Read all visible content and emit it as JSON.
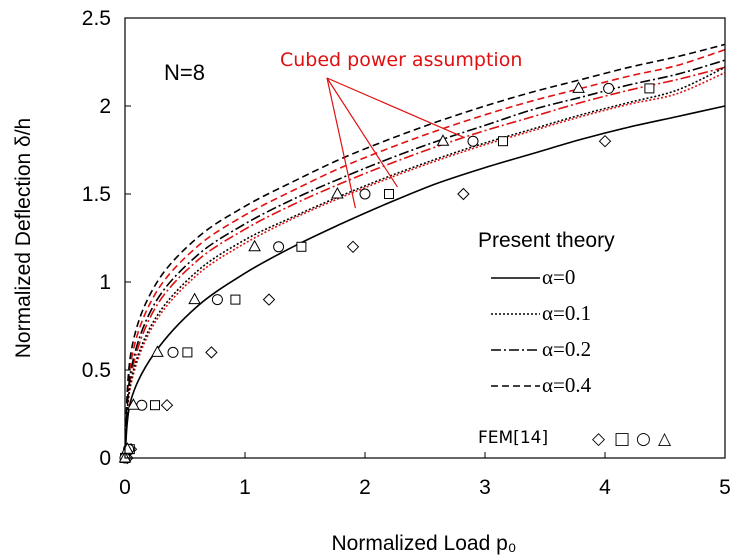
{
  "chart_data": {
    "type": "line",
    "title": "",
    "panel_label": "N=8",
    "xlabel": "Normalized Load p₀",
    "ylabel": "Normalized Deflection δ/h",
    "xlim": [
      0,
      5
    ],
    "ylim": [
      0,
      2.5
    ],
    "xticks": [
      "0",
      "1",
      "2",
      "3",
      "4",
      "5"
    ],
    "yticks": [
      "0",
      "0.5",
      "1",
      "1.5",
      "2",
      "2.5"
    ],
    "legend_title": "Present theory",
    "legend_position": "right-center",
    "annotation": "Cubed power assumption",
    "fem_label": "FEM[14]",
    "fem_symbols": [
      "◇",
      "□",
      "○",
      "△"
    ],
    "colors": {
      "present": "#000000",
      "cubed": "#e01010"
    },
    "series": [
      {
        "name": "α=0",
        "style": "solid",
        "y": [
          0,
          0.33,
          0.6,
          0.86,
          1.05,
          1.2,
          1.33,
          1.45,
          1.56,
          1.65,
          1.73,
          1.81,
          1.88,
          1.94,
          2.0
        ]
      },
      {
        "name": "α=0.1",
        "style": "dotted",
        "y": [
          0,
          0.44,
          0.79,
          1.06,
          1.24,
          1.37,
          1.49,
          1.6,
          1.7,
          1.79,
          1.87,
          1.95,
          2.02,
          2.09,
          2.22
        ]
      },
      {
        "name": "α=0.2",
        "style": "dashdot",
        "y": [
          0,
          0.5,
          0.88,
          1.15,
          1.33,
          1.47,
          1.59,
          1.7,
          1.8,
          1.89,
          1.98,
          2.05,
          2.12,
          2.18,
          2.26
        ]
      },
      {
        "name": "α=0.4",
        "style": "dashed",
        "y": [
          0,
          0.6,
          0.98,
          1.25,
          1.43,
          1.57,
          1.7,
          1.81,
          1.91,
          2.0,
          2.08,
          2.15,
          2.22,
          2.28,
          2.35
        ]
      }
    ],
    "x": [
      0,
      0.05,
      0.25,
      0.6,
      1.0,
      1.4,
      1.8,
      2.2,
      2.6,
      3.0,
      3.4,
      3.8,
      4.2,
      4.6,
      5.0
    ],
    "cubed_series": [
      {
        "style": "dotted",
        "y": [
          0,
          0.42,
          0.77,
          1.04,
          1.22,
          1.36,
          1.48,
          1.59,
          1.69,
          1.78,
          1.86,
          1.94,
          2.01,
          2.07,
          2.19
        ]
      },
      {
        "style": "dashdot",
        "y": [
          0,
          0.47,
          0.85,
          1.12,
          1.3,
          1.44,
          1.56,
          1.67,
          1.77,
          1.86,
          1.94,
          2.02,
          2.09,
          2.15,
          2.22
        ]
      },
      {
        "style": "dashed",
        "y": [
          0,
          0.55,
          0.93,
          1.2,
          1.38,
          1.52,
          1.65,
          1.76,
          1.86,
          1.95,
          2.03,
          2.1,
          2.17,
          2.23,
          2.32
        ]
      }
    ],
    "fem_points": [
      {
        "symbol": "diamond",
        "x": [
          0.02,
          0.05,
          0.35,
          0.72,
          1.2,
          1.9,
          2.82,
          4.0
        ],
        "y": [
          0.0,
          0.05,
          0.3,
          0.6,
          0.9,
          1.2,
          1.5,
          1.8
        ]
      },
      {
        "symbol": "square",
        "x": [
          0.0,
          0.04,
          0.25,
          0.52,
          0.92,
          1.47,
          2.2,
          3.15,
          4.37
        ],
        "y": [
          0.0,
          0.05,
          0.3,
          0.6,
          0.9,
          1.2,
          1.5,
          1.8,
          2.1
        ]
      },
      {
        "symbol": "circle",
        "x": [
          0.0,
          0.03,
          0.14,
          0.4,
          0.77,
          1.28,
          2.0,
          2.9,
          4.03
        ],
        "y": [
          0.0,
          0.05,
          0.3,
          0.6,
          0.9,
          1.2,
          1.5,
          1.8,
          2.1
        ]
      },
      {
        "symbol": "triangle",
        "x": [
          0.0,
          0.02,
          0.07,
          0.27,
          0.58,
          1.08,
          1.77,
          2.65,
          3.78
        ],
        "y": [
          0.0,
          0.05,
          0.3,
          0.6,
          0.9,
          1.2,
          1.5,
          1.8,
          2.1
        ]
      }
    ]
  }
}
